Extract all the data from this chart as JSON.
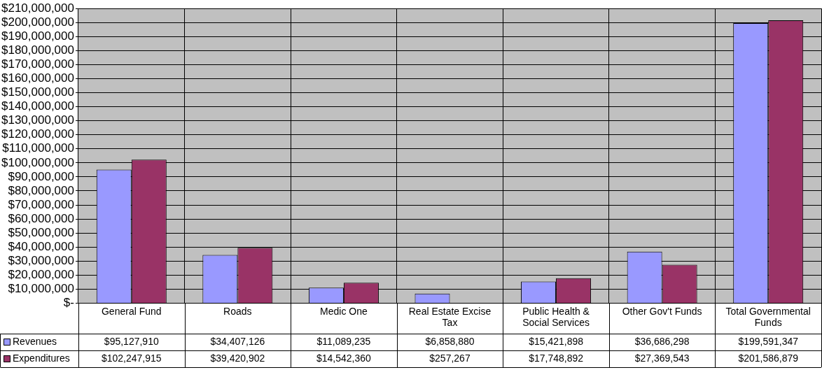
{
  "chart_data": {
    "type": "bar",
    "categories": [
      "General Fund",
      "Roads",
      "Medic One",
      "Real Estate Excise Tax",
      "Public Health & Social Services",
      "Other Gov't Funds",
      "Total Governmental Funds"
    ],
    "series": [
      {
        "name": "Revenues",
        "color": "#9999ff",
        "values": [
          95127910,
          34407126,
          11089235,
          6858880,
          15421898,
          36686298,
          199591347
        ],
        "value_labels": [
          "$95,127,910",
          "$34,407,126",
          "$11,089,235",
          "$6,858,880",
          "$15,421,898",
          "$36,686,298",
          "$199,591,347"
        ]
      },
      {
        "name": "Expenditures",
        "color": "#993366",
        "values": [
          102247915,
          39420902,
          14542360,
          257267,
          17748892,
          27369543,
          201586879
        ],
        "value_labels": [
          "$102,247,915",
          "$39,420,902",
          "$14,542,360",
          "$257,267",
          "$17,748,892",
          "$27,369,543",
          "$201,586,879"
        ]
      }
    ],
    "ylim": [
      0,
      210000000
    ],
    "yticks": [
      {
        "value": 0,
        "label": "$-"
      },
      {
        "value": 10000000,
        "label": "$10,000,000"
      },
      {
        "value": 20000000,
        "label": "$20,000,000"
      },
      {
        "value": 30000000,
        "label": "$30,000,000"
      },
      {
        "value": 40000000,
        "label": "$40,000,000"
      },
      {
        "value": 50000000,
        "label": "$50,000,000"
      },
      {
        "value": 60000000,
        "label": "$60,000,000"
      },
      {
        "value": 70000000,
        "label": "$70,000,000"
      },
      {
        "value": 80000000,
        "label": "$80,000,000"
      },
      {
        "value": 90000000,
        "label": "$90,000,000"
      },
      {
        "value": 100000000,
        "label": "$100,000,000"
      },
      {
        "value": 110000000,
        "label": "$110,000,000"
      },
      {
        "value": 120000000,
        "label": "$120,000,000"
      },
      {
        "value": 130000000,
        "label": "$130,000,000"
      },
      {
        "value": 140000000,
        "label": "$140,000,000"
      },
      {
        "value": 150000000,
        "label": "$150,000,000"
      },
      {
        "value": 160000000,
        "label": "$160,000,000"
      },
      {
        "value": 170000000,
        "label": "$170,000,000"
      },
      {
        "value": 180000000,
        "label": "$180,000,000"
      },
      {
        "value": 190000000,
        "label": "$190,000,000"
      },
      {
        "value": 200000000,
        "label": "$200,000,000"
      },
      {
        "value": 210000000,
        "label": "$210,000,000"
      }
    ],
    "grid": true,
    "legend": "bottom"
  }
}
